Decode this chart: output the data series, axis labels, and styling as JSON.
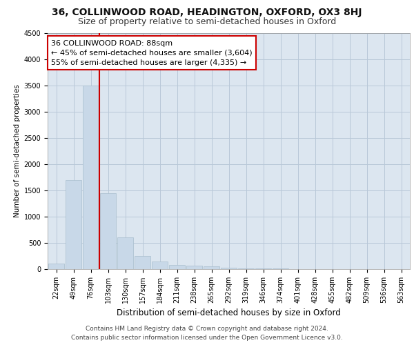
{
  "title": "36, COLLINWOOD ROAD, HEADINGTON, OXFORD, OX3 8HJ",
  "subtitle": "Size of property relative to semi-detached houses in Oxford",
  "xlabel": "Distribution of semi-detached houses by size in Oxford",
  "ylabel": "Number of semi-detached properties",
  "footer_line1": "Contains HM Land Registry data © Crown copyright and database right 2024.",
  "footer_line2": "Contains public sector information licensed under the Open Government Licence v3.0.",
  "bar_color": "#c8d8e8",
  "bar_edge_color": "#a8bece",
  "grid_color": "#b8c8d8",
  "background_color": "#dce6f0",
  "annotation_box_edgecolor": "#cc0000",
  "vline_color": "#cc0000",
  "annotation_text": "36 COLLINWOOD ROAD: 88sqm\n← 45% of semi-detached houses are smaller (3,604)\n55% of semi-detached houses are larger (4,335) →",
  "categories": [
    "22sqm",
    "49sqm",
    "76sqm",
    "103sqm",
    "130sqm",
    "157sqm",
    "184sqm",
    "211sqm",
    "238sqm",
    "265sqm",
    "292sqm",
    "319sqm",
    "346sqm",
    "374sqm",
    "401sqm",
    "428sqm",
    "455sqm",
    "482sqm",
    "509sqm",
    "536sqm",
    "563sqm"
  ],
  "values": [
    100,
    1700,
    3500,
    1450,
    600,
    250,
    150,
    85,
    70,
    55,
    30,
    15,
    10,
    8,
    5,
    3,
    2,
    2,
    1,
    1,
    1
  ],
  "ylim": [
    0,
    4500
  ],
  "yticks": [
    0,
    500,
    1000,
    1500,
    2000,
    2500,
    3000,
    3500,
    4000,
    4500
  ],
  "vline_x": 2.5,
  "title_fontsize": 10,
  "subtitle_fontsize": 9,
  "annotation_fontsize": 8,
  "ylabel_fontsize": 7.5,
  "xlabel_fontsize": 8.5,
  "tick_fontsize": 7,
  "footer_fontsize": 6.5
}
